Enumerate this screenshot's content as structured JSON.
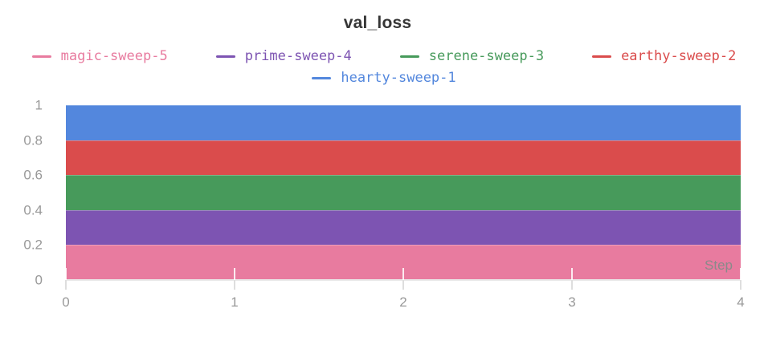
{
  "chart_data": {
    "type": "area",
    "title": "val_loss",
    "xlabel": "Step",
    "x": [
      0,
      1,
      2,
      3,
      4
    ],
    "series": [
      {
        "name": "magic-sweep-5",
        "color": "#E87B9F",
        "values": [
          0.2,
          0.2,
          0.2,
          0.2,
          0.2
        ]
      },
      {
        "name": "prime-sweep-4",
        "color": "#7D54B2",
        "values": [
          0.4,
          0.4,
          0.4,
          0.4,
          0.4
        ]
      },
      {
        "name": "serene-sweep-3",
        "color": "#479A5B",
        "values": [
          0.6,
          0.6,
          0.6,
          0.6,
          0.6
        ]
      },
      {
        "name": "earthy-sweep-2",
        "color": "#DA4C4C",
        "values": [
          0.8,
          0.8,
          0.8,
          0.8,
          0.8
        ]
      },
      {
        "name": "hearty-sweep-1",
        "color": "#5387DD",
        "values": [
          1.0,
          1.0,
          1.0,
          1.0,
          1.0
        ]
      }
    ],
    "x_ticks": [
      "0",
      "1",
      "2",
      "3",
      "4"
    ],
    "y_ticks": [
      "0",
      "0.2",
      "0.4",
      "0.6",
      "0.8",
      "1"
    ],
    "xlim": [
      0,
      4
    ],
    "ylim": [
      0,
      1
    ],
    "fill": "tozero",
    "grid": false,
    "legend_position": "top",
    "colors": {
      "title_text": "#363636",
      "tick_label_text": "#999999",
      "axis_line": "#e9e9e9",
      "step_label_text": "#8a8a8a",
      "background": "#ffffff"
    }
  }
}
